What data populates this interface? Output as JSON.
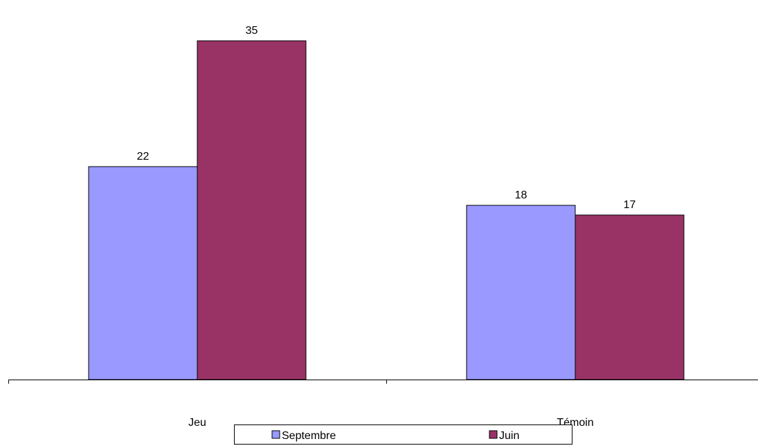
{
  "chart_data": {
    "type": "bar",
    "categories": [
      "Jeu",
      "Témoin"
    ],
    "series": [
      {
        "name": "Septembre",
        "values": [
          22,
          18
        ],
        "color": "#9999FF"
      },
      {
        "name": "Juin",
        "values": [
          35,
          17
        ],
        "color": "#993366"
      }
    ],
    "data_labels": true,
    "ylim": [
      0,
      38
    ],
    "y_axis_visible": false,
    "grid": false,
    "legend": {
      "position": "bottom",
      "orientation": "horizontal"
    },
    "title": "",
    "xlabel": "",
    "ylabel": ""
  }
}
